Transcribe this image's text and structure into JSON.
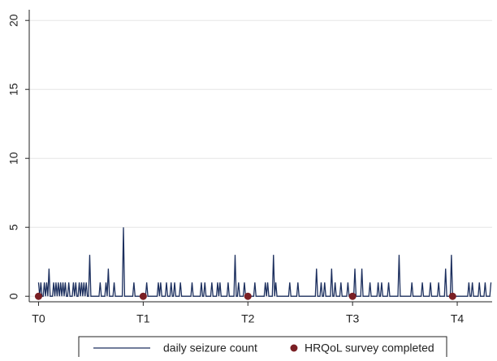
{
  "chart_data": {
    "type": "line",
    "xlim": [
      -8,
      390
    ],
    "ylim": [
      -0.4,
      20.6
    ],
    "xticks": [
      {
        "value": 0,
        "label": "T0"
      },
      {
        "value": 90,
        "label": "T1"
      },
      {
        "value": 180,
        "label": "T2"
      },
      {
        "value": 270,
        "label": "T3"
      },
      {
        "value": 360,
        "label": "T4"
      }
    ],
    "yticks": [
      0,
      5,
      10,
      15,
      20
    ],
    "grid": true,
    "legend": "bottom",
    "series": [
      {
        "name": "daily seizure count",
        "color": "#1c2f5e",
        "mode": "lines",
        "x": [
          0,
          1,
          2,
          3,
          4,
          5,
          6,
          7,
          8,
          9,
          10,
          12,
          13,
          14,
          15,
          16,
          17,
          18,
          19,
          20,
          21,
          22,
          23,
          24,
          25,
          26,
          27,
          29,
          30,
          31,
          32,
          33,
          34,
          35,
          36,
          37,
          38,
          39,
          40,
          41,
          42,
          43,
          44,
          45,
          52,
          53,
          54,
          57,
          58,
          59,
          60,
          61,
          64,
          65,
          66,
          72,
          73,
          74,
          81,
          82,
          83,
          92,
          93,
          94,
          102,
          103,
          104,
          105,
          106,
          109,
          110,
          111,
          113,
          114,
          115,
          116,
          117,
          118,
          121,
          122,
          123,
          131,
          132,
          133,
          139,
          140,
          141,
          142,
          143,
          144,
          148,
          149,
          150,
          153,
          154,
          155,
          156,
          157,
          162,
          163,
          164,
          168,
          169,
          170,
          171,
          172,
          173,
          176,
          177,
          178,
          185,
          186,
          187,
          194,
          195,
          196,
          197,
          198,
          201,
          202,
          203,
          204,
          205,
          215,
          216,
          217,
          222,
          223,
          224,
          238,
          239,
          240,
          242,
          243,
          244,
          245,
          246,
          247,
          251,
          252,
          253,
          254,
          255,
          256,
          259,
          260,
          261,
          265,
          266,
          267,
          271,
          272,
          273,
          277,
          278,
          279,
          284,
          285,
          286,
          291,
          292,
          293,
          294,
          295,
          296,
          300,
          301,
          302,
          309,
          310,
          311,
          320,
          321,
          322,
          329,
          330,
          331,
          336,
          337,
          338,
          343,
          344,
          345,
          349,
          350,
          351,
          354,
          355,
          356,
          369,
          370,
          371,
          372,
          373,
          374,
          378,
          379,
          380,
          383,
          384,
          385,
          388,
          389
        ],
        "values": [
          1,
          0,
          1,
          0,
          0,
          1,
          0,
          1,
          0,
          2,
          0,
          0,
          1,
          0,
          1,
          0,
          1,
          0,
          1,
          0,
          1,
          0,
          1,
          0,
          0,
          1,
          0,
          0,
          1,
          0,
          1,
          0,
          0,
          1,
          0,
          1,
          0,
          1,
          0,
          1,
          0,
          0,
          3,
          0,
          0,
          1,
          0,
          0,
          1,
          0,
          2,
          0,
          0,
          1,
          0,
          0,
          5,
          0,
          0,
          1,
          0,
          0,
          1,
          0,
          0,
          1,
          0,
          1,
          0,
          0,
          1,
          0,
          0,
          1,
          0,
          0,
          1,
          0,
          0,
          1,
          0,
          0,
          1,
          0,
          0,
          1,
          0,
          0,
          1,
          0,
          0,
          1,
          0,
          0,
          1,
          0,
          1,
          0,
          0,
          1,
          0,
          0,
          3,
          0,
          0,
          1,
          0,
          0,
          1,
          0,
          0,
          1,
          0,
          0,
          1,
          0,
          1,
          0,
          0,
          3,
          0,
          1,
          0,
          0,
          1,
          0,
          0,
          1,
          0,
          0,
          2,
          0,
          0,
          1,
          0,
          0,
          1,
          0,
          0,
          2,
          0,
          0,
          1,
          0,
          0,
          1,
          0,
          0,
          1,
          0,
          0,
          2,
          0,
          0,
          2,
          0,
          0,
          1,
          0,
          0,
          1,
          0,
          0,
          1,
          0,
          0,
          1,
          0,
          0,
          3,
          0,
          0,
          1,
          0,
          0,
          1,
          0,
          0,
          1,
          0,
          0,
          1,
          0,
          0,
          2,
          0,
          0,
          3,
          0,
          0,
          1,
          0,
          0,
          1,
          0,
          0,
          1,
          0,
          0,
          1,
          0,
          0,
          1
        ]
      },
      {
        "name": "HRQoL survey completed",
        "color": "#7a1f24",
        "mode": "markers",
        "x": [
          0,
          90,
          180,
          270,
          356
        ],
        "values": [
          0,
          0,
          0,
          0,
          0
        ]
      }
    ]
  }
}
